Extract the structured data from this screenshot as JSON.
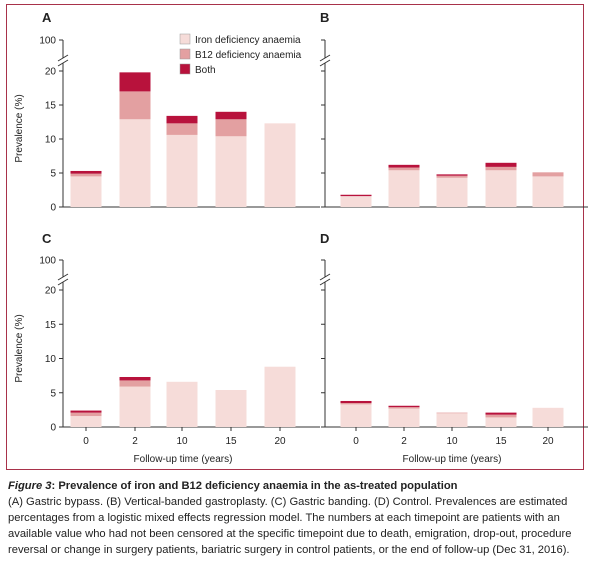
{
  "colors": {
    "iron": "#f6dcd9",
    "b12": "#e3a0a1",
    "both": "#b8123c",
    "frame": "#a8324a",
    "axis": "#333333"
  },
  "caption": {
    "title_prefix": "Figure 3",
    "title_rest": ": Prevalence of iron and B12 deficiency anaemia in the as-treated population",
    "body": "(A) Gastric bypass. (B) Vertical-banded gastroplasty. (C) Gastric banding. (D) Control. Prevalences are estimated percentages from a logistic mixed effects regression model. The numbers at each timepoint are patients with an available value who had not been censored at the specific timepoint due to death, emigration, drop-out, procedure reversal or change in surgery patients, bariatric surgery in control patients, or the end of follow-up (Dec 31, 2016)."
  },
  "chart_data": [
    {
      "panel": "A",
      "type": "bar",
      "stacked": true,
      "categories": [
        "0",
        "2",
        "10",
        "15",
        "20"
      ],
      "series": [
        {
          "name": "Iron deficiency anaemia",
          "values": [
            4.5,
            12.9,
            10.6,
            10.4,
            12.3
          ]
        },
        {
          "name": "B12 deficiency anaemia",
          "values": [
            0.4,
            4.1,
            1.7,
            2.5,
            0
          ]
        },
        {
          "name": "Both",
          "values": [
            0.4,
            2.8,
            1.1,
            1.1,
            0
          ]
        }
      ],
      "ylabel": "Prevalence (%)",
      "yticks": [
        0,
        5,
        10,
        15,
        20,
        100
      ],
      "ylim": [
        0,
        20
      ],
      "axis_break": true,
      "show_ylabel": true,
      "show_xticks": false,
      "legend": "top-right"
    },
    {
      "panel": "B",
      "type": "bar",
      "stacked": true,
      "categories": [
        "0",
        "2",
        "10",
        "15",
        "20"
      ],
      "series": [
        {
          "name": "Iron deficiency anaemia",
          "values": [
            1.6,
            5.4,
            4.3,
            5.4,
            4.5
          ]
        },
        {
          "name": "B12 deficiency anaemia",
          "values": [
            0,
            0.4,
            0.3,
            0.5,
            0.6
          ]
        },
        {
          "name": "Both",
          "values": [
            0.2,
            0.4,
            0.2,
            0.6,
            0
          ]
        }
      ],
      "yticks": [
        0,
        5,
        10,
        15,
        20,
        100
      ],
      "ylim": [
        0,
        20
      ],
      "axis_break": true,
      "show_ylabel": false,
      "show_xticks": false
    },
    {
      "panel": "C",
      "type": "bar",
      "stacked": true,
      "categories": [
        "0",
        "2",
        "10",
        "15",
        "20"
      ],
      "series": [
        {
          "name": "Iron deficiency anaemia",
          "values": [
            1.6,
            5.9,
            6.6,
            5.4,
            8.8
          ]
        },
        {
          "name": "B12 deficiency anaemia",
          "values": [
            0.5,
            0.9,
            0,
            0,
            0
          ]
        },
        {
          "name": "Both",
          "values": [
            0.3,
            0.5,
            0,
            0,
            0
          ]
        }
      ],
      "ylabel": "Prevalence (%)",
      "yticks": [
        0,
        5,
        10,
        15,
        20,
        100
      ],
      "ylim": [
        0,
        20
      ],
      "axis_break": true,
      "show_ylabel": true,
      "show_xticks": true,
      "xlabel": "Follow-up time (years)"
    },
    {
      "panel": "D",
      "type": "bar",
      "stacked": true,
      "categories": [
        "0",
        "2",
        "10",
        "15",
        "20"
      ],
      "series": [
        {
          "name": "Iron deficiency anaemia",
          "values": [
            3.3,
            2.7,
            2.0,
            1.4,
            2.8
          ]
        },
        {
          "name": "B12 deficiency anaemia",
          "values": [
            0.2,
            0.2,
            0.1,
            0.4,
            0
          ]
        },
        {
          "name": "Both",
          "values": [
            0.3,
            0.2,
            0,
            0.3,
            0
          ]
        }
      ],
      "yticks": [
        0,
        5,
        10,
        15,
        20,
        100
      ],
      "ylim": [
        0,
        20
      ],
      "axis_break": true,
      "show_ylabel": false,
      "show_xticks": true,
      "xlabel": "Follow-up time (years)"
    }
  ]
}
